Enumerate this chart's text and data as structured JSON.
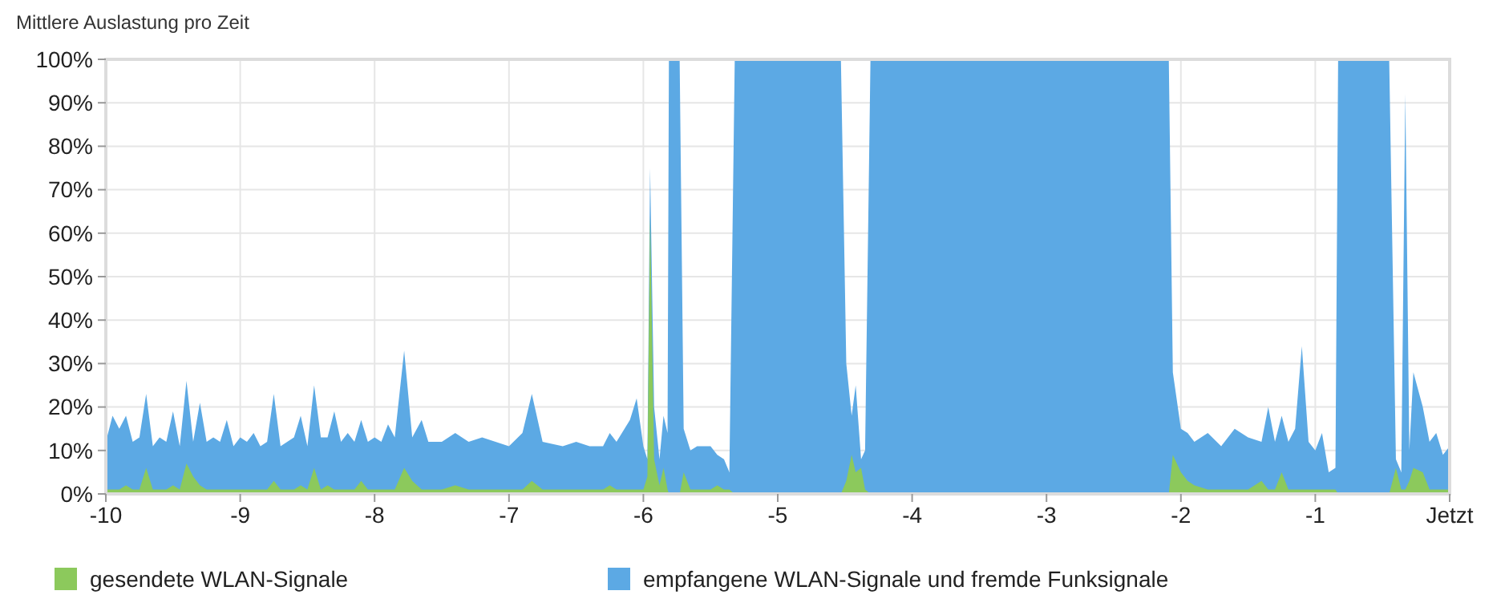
{
  "chart_data": {
    "type": "area",
    "title": "Mittlere Auslastung pro Zeit",
    "x": [
      -10,
      -9.95,
      -9.9,
      -9.85,
      -9.8,
      -9.75,
      -9.7,
      -9.65,
      -9.6,
      -9.55,
      -9.5,
      -9.45,
      -9.4,
      -9.35,
      -9.3,
      -9.25,
      -9.2,
      -9.15,
      -9.1,
      -9.05,
      -9.0,
      -8.95,
      -8.9,
      -8.85,
      -8.8,
      -8.75,
      -8.7,
      -8.65,
      -8.6,
      -8.55,
      -8.5,
      -8.45,
      -8.4,
      -8.35,
      -8.3,
      -8.25,
      -8.2,
      -8.15,
      -8.1,
      -8.05,
      -8.0,
      -7.95,
      -7.9,
      -7.85,
      -7.78,
      -7.72,
      -7.65,
      -7.6,
      -7.5,
      -7.4,
      -7.3,
      -7.2,
      -7.1,
      -7.0,
      -6.9,
      -6.83,
      -6.75,
      -6.6,
      -6.5,
      -6.4,
      -6.3,
      -6.25,
      -6.2,
      -6.1,
      -6.05,
      -6.0,
      -5.97,
      -5.95,
      -5.92,
      -5.88,
      -5.85,
      -5.82,
      -5.81,
      -5.73,
      -5.7,
      -5.65,
      -5.6,
      -5.5,
      -5.45,
      -5.4,
      -5.36,
      -5.32,
      -4.53,
      -4.49,
      -4.45,
      -4.42,
      -4.38,
      -4.35,
      -4.31,
      -2.09,
      -2.06,
      -2.0,
      -1.95,
      -1.9,
      -1.8,
      -1.7,
      -1.6,
      -1.5,
      -1.4,
      -1.35,
      -1.3,
      -1.25,
      -1.2,
      -1.15,
      -1.1,
      -1.05,
      -1.0,
      -0.95,
      -0.9,
      -0.85,
      -0.83,
      -0.45,
      -0.4,
      -0.36,
      -0.33,
      -0.3,
      -0.27,
      -0.2,
      -0.15,
      -0.1,
      -0.05,
      0
    ],
    "series": [
      {
        "name": "gesendete WLAN-Signale",
        "color": "#8cc95c",
        "values": [
          1,
          1,
          1,
          2,
          1,
          1,
          6,
          1,
          1,
          1,
          2,
          1,
          7,
          4,
          2,
          1,
          1,
          1,
          1,
          1,
          1,
          1,
          1,
          1,
          1,
          3,
          1,
          1,
          1,
          2,
          1,
          6,
          1,
          2,
          1,
          1,
          1,
          1,
          3,
          1,
          1,
          1,
          1,
          1,
          6,
          3,
          1,
          1,
          1,
          2,
          1,
          1,
          1,
          1,
          1,
          3,
          1,
          1,
          1,
          1,
          1,
          2,
          1,
          1,
          1,
          1,
          4,
          64,
          8,
          2,
          6,
          1,
          0,
          0,
          5,
          1,
          1,
          1,
          2,
          1,
          1,
          0,
          0,
          3,
          9,
          5,
          6,
          1,
          0,
          0,
          9,
          5,
          3,
          2,
          1,
          1,
          1,
          1,
          3,
          1,
          1,
          5,
          1,
          1,
          1,
          1,
          1,
          1,
          1,
          1,
          0,
          0,
          6,
          1,
          1,
          3,
          6,
          5,
          1,
          1,
          1,
          1
        ]
      },
      {
        "name": "empfangene WLAN-Signale und fremde Funksignale",
        "color": "#5ca9e4",
        "values": [
          12,
          18,
          15,
          18,
          12,
          13,
          23,
          11,
          13,
          12,
          19,
          11,
          26,
          12,
          21,
          12,
          13,
          12,
          17,
          11,
          13,
          12,
          14,
          11,
          12,
          23,
          11,
          12,
          13,
          18,
          11,
          25,
          13,
          13,
          19,
          12,
          14,
          12,
          17,
          12,
          13,
          12,
          16,
          13,
          33,
          13,
          17,
          12,
          12,
          14,
          12,
          13,
          12,
          11,
          14,
          23,
          12,
          11,
          12,
          11,
          11,
          14,
          12,
          17,
          22,
          11,
          8,
          75,
          20,
          8,
          18,
          14,
          100,
          100,
          15,
          10,
          11,
          11,
          9,
          8,
          5,
          100,
          100,
          30,
          18,
          25,
          8,
          10,
          100,
          100,
          28,
          15,
          14,
          12,
          14,
          11,
          15,
          13,
          12,
          20,
          12,
          18,
          12,
          15,
          34,
          12,
          10,
          14,
          5,
          6,
          100,
          100,
          8,
          5,
          92,
          10,
          28,
          20,
          12,
          14,
          9,
          11
        ]
      }
    ],
    "xlim": [
      -10,
      0
    ],
    "xticks": [
      -10,
      -9,
      -8,
      -7,
      -6,
      -5,
      -4,
      -3,
      -2,
      -1,
      {
        "value": 0,
        "label": "Jetzt"
      }
    ],
    "ylim": [
      0,
      100
    ],
    "yticks": [
      {
        "value": 0,
        "label": "0%"
      },
      {
        "value": 10,
        "label": "10%"
      },
      {
        "value": 20,
        "label": "20%"
      },
      {
        "value": 30,
        "label": "30%"
      },
      {
        "value": 40,
        "label": "40%"
      },
      {
        "value": 50,
        "label": "50%"
      },
      {
        "value": 60,
        "label": "60%"
      },
      {
        "value": 70,
        "label": "70%"
      },
      {
        "value": 80,
        "label": "80%"
      },
      {
        "value": 90,
        "label": "90%"
      },
      {
        "value": 100,
        "label": "100%"
      }
    ],
    "grid": true,
    "legend": "bottom"
  }
}
